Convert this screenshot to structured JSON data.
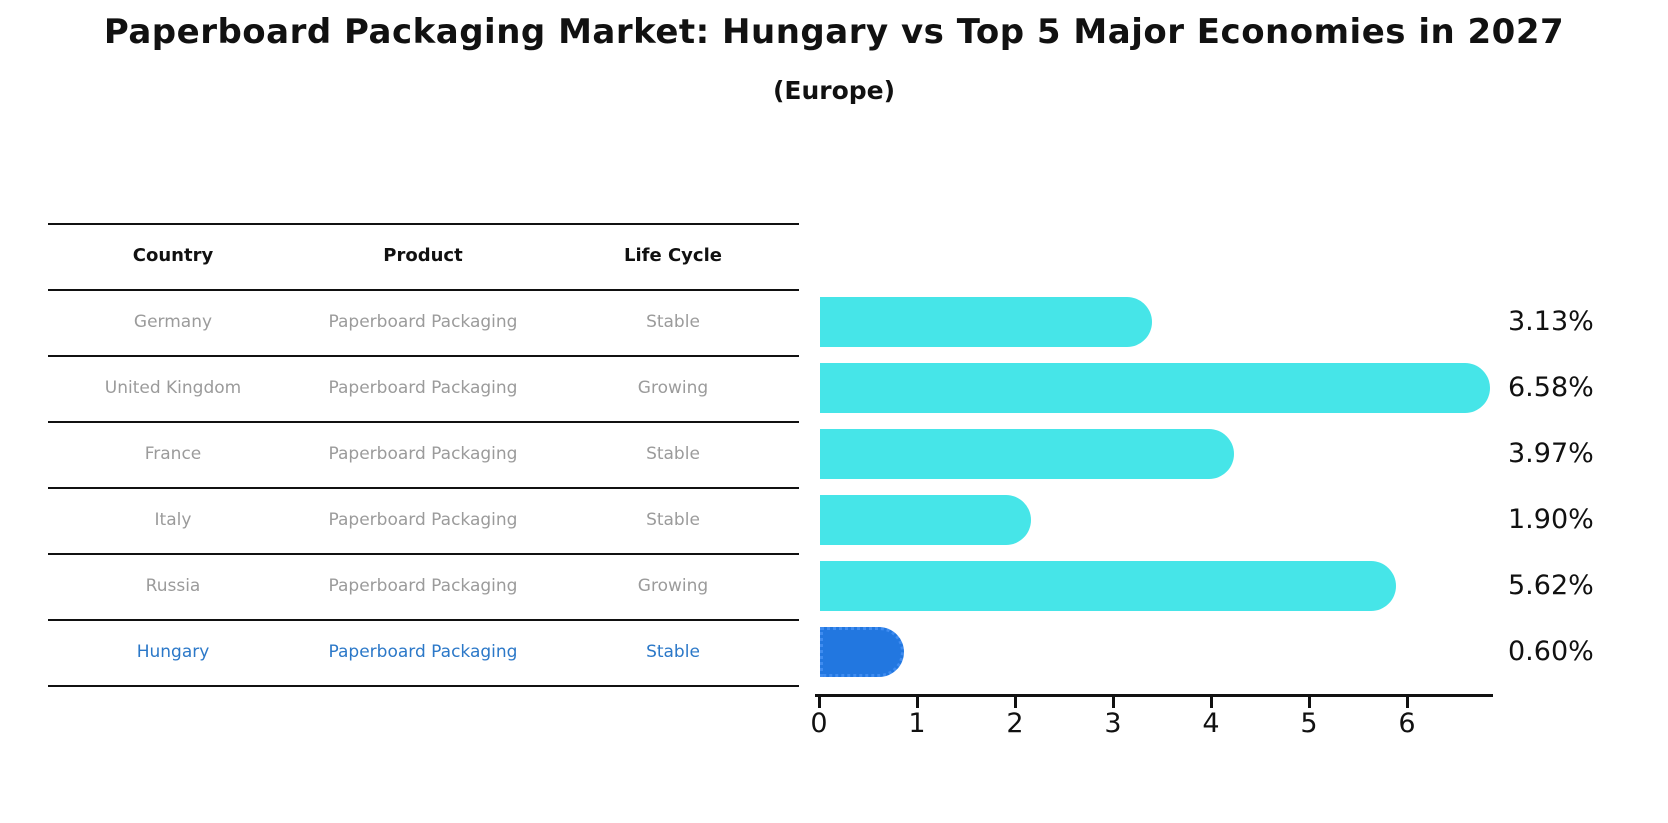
{
  "title": "Paperboard Packaging Market: Hungary vs Top 5 Major Economies in 2027",
  "subtitle": "(Europe)",
  "table": {
    "headers": [
      "Country",
      "Product",
      "Life Cycle"
    ],
    "rows": [
      {
        "country": "Germany",
        "product": "Paperboard Packaging",
        "life_cycle": "Stable",
        "highlight": false
      },
      {
        "country": "United Kingdom",
        "product": "Paperboard Packaging",
        "life_cycle": "Growing",
        "highlight": false
      },
      {
        "country": "France",
        "product": "Paperboard Packaging",
        "life_cycle": "Stable",
        "highlight": false
      },
      {
        "country": "Italy",
        "product": "Paperboard Packaging",
        "life_cycle": "Stable",
        "highlight": false
      },
      {
        "country": "Russia",
        "product": "Paperboard Packaging",
        "life_cycle": "Growing",
        "highlight": false
      },
      {
        "country": "Hungary",
        "product": "Paperboard Packaging",
        "life_cycle": "Stable",
        "highlight": true
      }
    ]
  },
  "chart_data": {
    "type": "bar",
    "orientation": "horizontal",
    "title": "Paperboard Packaging Market: Hungary vs Top 5 Major Economies in 2027 (Europe)",
    "categories": [
      "Germany",
      "United Kingdom",
      "France",
      "Italy",
      "Russia",
      "Hungary"
    ],
    "values": [
      3.13,
      6.58,
      3.97,
      1.9,
      5.62,
      0.6
    ],
    "value_labels": [
      "3.13%",
      "6.58%",
      "3.97%",
      "1.90%",
      "5.62%",
      "0.60%"
    ],
    "x_ticks": [
      "0",
      "1",
      "2",
      "3",
      "4",
      "5",
      "6"
    ],
    "xlim": [
      0,
      6.9
    ],
    "grid": false,
    "legend": false,
    "highlight_index": 5
  },
  "colors": {
    "bar": "#46e5e8",
    "highlight_bar": "#2277e0",
    "highlight_border": "#3f8cf0",
    "highlight_text": "#2b78c8",
    "header_text": "#111111",
    "cell_text": "#9b9b9b",
    "axis": "#111111",
    "value_label": "#111111"
  }
}
